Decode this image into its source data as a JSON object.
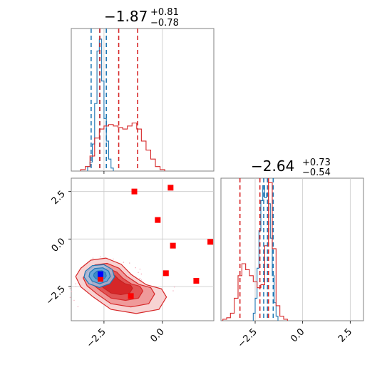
{
  "chart_data": [
    {
      "type": "histogram",
      "panel": "top-left",
      "title": {
        "value": "−1.87",
        "plus": "+0.81",
        "minus": "−0.78"
      },
      "xlim": [
        -3.9,
        2.2
      ],
      "grid": true,
      "series": [
        {
          "name": "",
          "color": "#1f77b4",
          "bin_edges": [
            -3.2,
            -3.1,
            -3.0,
            -2.9,
            -2.8,
            -2.7,
            -2.6,
            -2.5,
            -2.4,
            -2.3,
            -2.2,
            -2.1
          ],
          "counts": [
            0.03,
            0.06,
            0.18,
            0.45,
            0.8,
            0.88,
            0.6,
            0.35,
            0.2,
            0.08,
            0.02
          ],
          "quantiles": [
            -3.05,
            -2.68,
            -2.4
          ]
        },
        {
          "name": "",
          "color": "#d62728",
          "bin_edges": [
            -3.5,
            -3.3,
            -3.1,
            -2.9,
            -2.7,
            -2.5,
            -2.3,
            -2.1,
            -1.9,
            -1.7,
            -1.5,
            -1.3,
            -1.1,
            -0.9,
            -0.7,
            -0.5,
            -0.3,
            -0.1,
            0.1
          ],
          "counts": [
            0.01,
            0.03,
            0.1,
            0.22,
            0.28,
            0.3,
            0.31,
            0.3,
            0.29,
            0.28,
            0.3,
            0.32,
            0.28,
            0.2,
            0.14,
            0.08,
            0.03,
            0.01
          ],
          "quantiles": [
            -2.68,
            -1.87,
            -1.06
          ]
        }
      ]
    },
    {
      "type": "histogram",
      "panel": "bottom-right",
      "title": {
        "value": "−2.64",
        "plus": "+0.73",
        "minus": "−0.54"
      },
      "xlim": [
        -4.3,
        3.2
      ],
      "xticks": [
        "−2.5",
        "0.0",
        "2.5"
      ],
      "xtick_values": [
        -2.5,
        0.0,
        2.5
      ],
      "grid": true,
      "series": [
        {
          "name": "",
          "color": "#1f77b4",
          "bin_edges": [
            -2.6,
            -2.5,
            -2.4,
            -2.3,
            -2.2,
            -2.1,
            -2.0,
            -1.9,
            -1.8,
            -1.7,
            -1.6,
            -1.5,
            -1.4,
            -1.3
          ],
          "counts": [
            0.05,
            0.15,
            0.35,
            0.6,
            0.8,
            0.9,
            0.82,
            0.85,
            0.78,
            0.55,
            0.3,
            0.12,
            0.03
          ],
          "quantiles": [
            -2.05,
            -1.85,
            -1.55
          ]
        },
        {
          "name": "",
          "color": "#d62728",
          "bin_edges": [
            -4.2,
            -4.0,
            -3.8,
            -3.6,
            -3.4,
            -3.2,
            -3.0,
            -2.8,
            -2.6,
            -2.4,
            -2.2,
            -2.0,
            -1.8,
            -1.6,
            -1.4,
            -1.2,
            -1.0,
            -0.8
          ],
          "counts": [
            0.01,
            0.02,
            0.05,
            0.15,
            0.3,
            0.38,
            0.34,
            0.3,
            0.26,
            0.22,
            0.24,
            0.5,
            0.92,
            0.48,
            0.1,
            0.03,
            0.01
          ],
          "quantiles": [
            -3.3,
            -2.25,
            -1.8
          ]
        }
      ]
    },
    {
      "type": "scatter",
      "panel": "bottom-left",
      "xlim": [
        -3.9,
        2.2
      ],
      "ylim": [
        -4.3,
        3.2
      ],
      "xticks": [
        "−2.5",
        "0.0"
      ],
      "xtick_values": [
        -2.5,
        0.0
      ],
      "yticks": [
        "−2.5",
        "0.0",
        "2.5"
      ],
      "ytick_values": [
        -2.5,
        0.0,
        2.5
      ],
      "grid": true,
      "contours": {
        "red": {
          "center": [
            -2.2,
            -2.3
          ],
          "points": [
            [
              -3.4,
              -1.6
            ],
            [
              -3.0,
              -1.2
            ],
            [
              -2.4,
              -1.1
            ],
            [
              -1.8,
              -1.4
            ],
            [
              -1.4,
              -1.9
            ],
            [
              -0.8,
              -2.4
            ],
            [
              -0.2,
              -2.6
            ],
            [
              0.0,
              -3.0
            ],
            [
              -0.3,
              -3.6
            ],
            [
              -1.2,
              -3.8
            ],
            [
              -2.2,
              -3.6
            ],
            [
              -2.9,
              -3.0
            ],
            [
              -3.4,
              -2.5
            ],
            [
              -3.6,
              -2.0
            ]
          ]
        },
        "blue": {
          "center": [
            -2.65,
            -1.9
          ],
          "points": [
            [
              -3.3,
              -1.7
            ],
            [
              -3.0,
              -1.4
            ],
            [
              -2.5,
              -1.35
            ],
            [
              -2.15,
              -1.6
            ],
            [
              -2.05,
              -2.0
            ],
            [
              -2.25,
              -2.35
            ],
            [
              -2.7,
              -2.55
            ],
            [
              -3.15,
              -2.35
            ],
            [
              -3.35,
              -2.0
            ]
          ]
        }
      },
      "red_markers": [
        [
          -1.2,
          2.5
        ],
        [
          0.35,
          2.7
        ],
        [
          -0.2,
          1.0
        ],
        [
          0.45,
          -0.35
        ],
        [
          2.05,
          -0.15
        ],
        [
          0.15,
          -1.8
        ],
        [
          1.45,
          -2.2
        ],
        [
          -1.35,
          -3.0
        ],
        [
          -2.65,
          -2.1
        ]
      ],
      "blue_markers": [
        [
          -2.65,
          -1.85
        ]
      ]
    }
  ]
}
